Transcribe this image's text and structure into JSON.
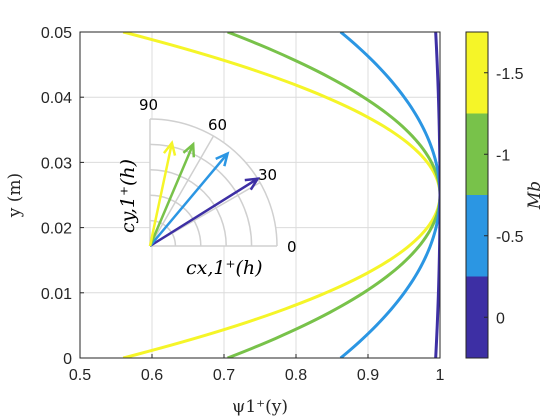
{
  "chart_data": {
    "type": "line",
    "xlabel": "ψ1⁺(y)",
    "ylabel": "y (m)",
    "xlim": [
      0.5,
      1.0
    ],
    "ylim": [
      0,
      0.05
    ],
    "xticks": [
      "0.5",
      "0.6",
      "0.7",
      "0.8",
      "0.9",
      "1"
    ],
    "yticks": [
      "0",
      "0.01",
      "0.02",
      "0.03",
      "0.04",
      "0.05"
    ],
    "grid": true,
    "series": [
      {
        "Mb": -1.5,
        "color": "#f5f528",
        "x": [
          0.56,
          0.8,
          1.0,
          0.8,
          0.56
        ],
        "y": [
          0.0,
          0.01,
          0.025,
          0.04,
          0.05
        ]
      },
      {
        "Mb": -1.0,
        "color": "#78c24a",
        "x": [
          0.705,
          0.86,
          1.0,
          0.86,
          0.705
        ],
        "y": [
          0.0,
          0.01,
          0.025,
          0.04,
          0.05
        ]
      },
      {
        "Mb": -0.5,
        "color": "#2b96e3",
        "x": [
          0.862,
          0.946,
          1.0,
          0.946,
          0.862
        ],
        "y": [
          0.0,
          0.01,
          0.025,
          0.04,
          0.05
        ]
      },
      {
        "Mb": 0.0,
        "color": "#3d2fa4",
        "x": [
          0.994,
          0.998,
          1.0,
          0.998,
          0.994
        ],
        "y": [
          0.0,
          0.01,
          0.025,
          0.04,
          0.05
        ]
      }
    ],
    "colorbar": {
      "label": "Mb",
      "ticks": [
        "-1.5",
        "-1",
        "-0.5",
        "0"
      ],
      "colors": [
        "#f5f528",
        "#78c24a",
        "#2b96e3",
        "#3d2fa4"
      ]
    },
    "inset": {
      "xlabel": "cx,1⁺(h)",
      "ylabel": "cy,1⁺(h)",
      "angle_labels": [
        "0",
        "30",
        "60",
        "90"
      ],
      "arrows": [
        {
          "Mb": 0.0,
          "angle_deg": 32,
          "length": 1.0
        },
        {
          "Mb": -0.5,
          "angle_deg": 50,
          "length": 0.95
        },
        {
          "Mb": -1.0,
          "angle_deg": 67,
          "length": 0.87
        },
        {
          "Mb": -1.5,
          "angle_deg": 78,
          "length": 0.83
        }
      ]
    }
  }
}
